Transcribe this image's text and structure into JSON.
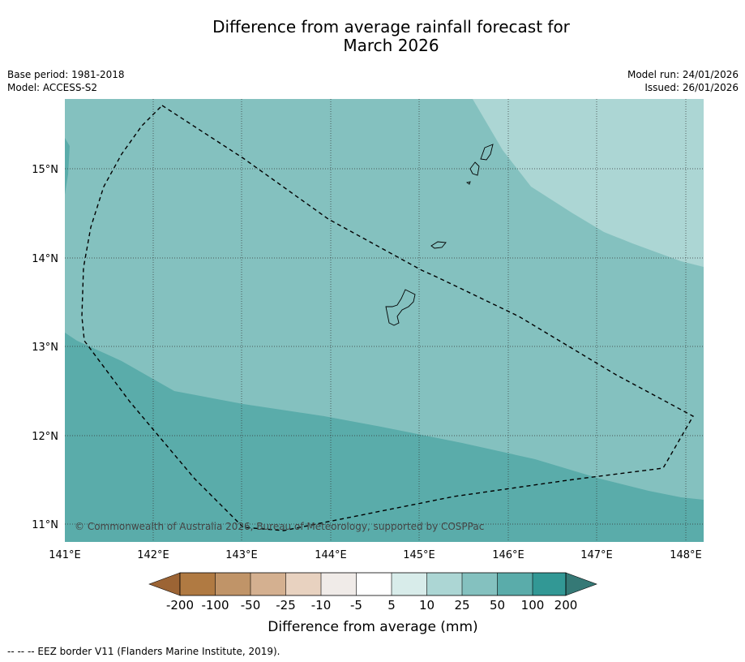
{
  "title": {
    "line1": "Difference from average rainfall forecast for",
    "line2": "March 2026"
  },
  "meta": {
    "base_period": "Base period: 1981-2018",
    "model": "Model: ACCESS-S2",
    "model_run": "Model run: 24/01/2026",
    "issued": "Issued: 26/01/2026"
  },
  "map": {
    "lon_range": [
      141,
      148.2
    ],
    "lat_range": [
      10.8,
      15.8
    ],
    "lon_ticks": [
      "141°E",
      "142°E",
      "143°E",
      "144°E",
      "145°E",
      "146°E",
      "147°E",
      "148°E"
    ],
    "lat_ticks": [
      "11°N",
      "12°N",
      "13°N",
      "14°N",
      "15°N"
    ],
    "gridlines": true,
    "copyright": "© Commonwealth of Australia 2026, Bureau of Meteorology, supported by COSPPac"
  },
  "colorbar": {
    "labels": [
      "-200",
      "-100",
      "-50",
      "-25",
      "-10",
      "-5",
      "5",
      "10",
      "25",
      "50",
      "100",
      "200"
    ],
    "colors": [
      "#9c6434",
      "#b07a42",
      "#c09468",
      "#d4b090",
      "#e8d2c0",
      "#f0ebe8",
      "#ffffff",
      "#d8ecea",
      "#acd6d4",
      "#84c1bf",
      "#5aacaa",
      "#329895",
      "#357976"
    ],
    "label": "Difference from average (mm)"
  },
  "footer": "-- -- -- EEZ border V11 (Flanders Marine Institute, 2019)."
}
